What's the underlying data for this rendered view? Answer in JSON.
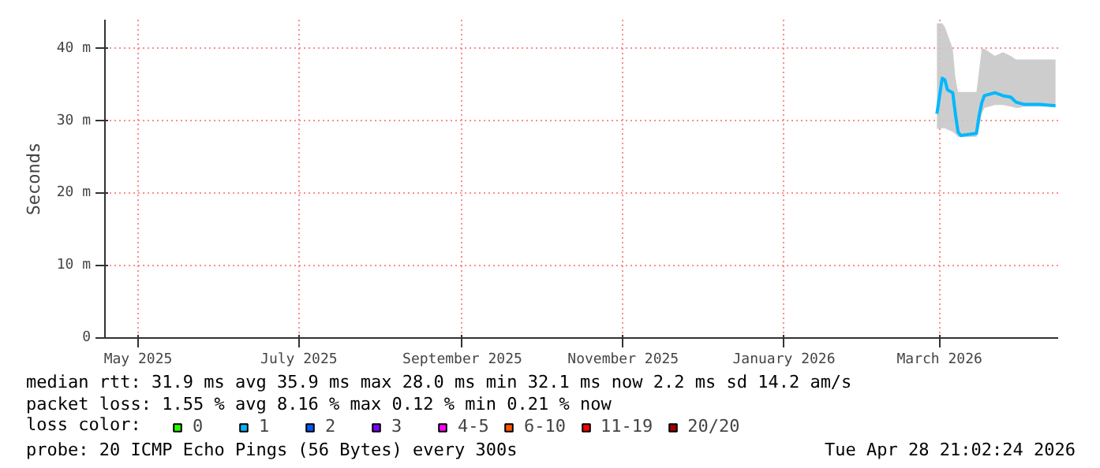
{
  "chart_data": {
    "type": "line",
    "ylabel": "Seconds",
    "legend_title": "loss color:",
    "x": [
      "2026-02-28",
      "2026-03-02",
      "2026-03-03",
      "2026-03-04",
      "2026-03-06",
      "2026-03-07",
      "2026-03-08",
      "2026-03-09",
      "2026-03-15",
      "2026-03-16",
      "2026-03-17",
      "2026-03-18",
      "2026-03-22",
      "2026-03-25",
      "2026-03-28",
      "2026-03-30",
      "2026-03-31",
      "2026-04-02",
      "2026-04-08",
      "2026-04-14"
    ],
    "series": [
      {
        "name": "0",
        "color": "#26ff00",
        "values": [
          null,
          null,
          null,
          null,
          null,
          null,
          null,
          null,
          null,
          null,
          null,
          null,
          null,
          null,
          null,
          null,
          null,
          null,
          null,
          null
        ]
      },
      {
        "name": "1",
        "color": "#00b8ff",
        "values": [
          31.0,
          35.9,
          35.7,
          34.3,
          33.9,
          31.0,
          28.5,
          28.0,
          28.3,
          30.7,
          32.5,
          33.5,
          33.9,
          33.5,
          33.3,
          32.6,
          32.5,
          32.3,
          32.3,
          32.1
        ],
        "lower": [
          28.9,
          29.0,
          29.0,
          28.8,
          28.5,
          28.2,
          27.8,
          27.8,
          27.8,
          29.0,
          31.0,
          31.8,
          32.2,
          32.2,
          32.0,
          31.8,
          31.8,
          32.0,
          32.0,
          32.0
        ],
        "upper": [
          43.5,
          43.5,
          43.0,
          42.0,
          40.0,
          36.0,
          34.0,
          34.0,
          34.0,
          37.0,
          40.0,
          40.0,
          39.0,
          39.5,
          39.0,
          38.5,
          38.5,
          38.5,
          38.5,
          38.5
        ]
      },
      {
        "name": "2",
        "color": "#0059ff",
        "values": [
          null,
          null,
          null,
          null,
          null,
          null,
          null,
          null,
          null,
          null,
          null,
          null,
          null,
          null,
          null,
          null,
          null,
          null,
          null,
          null
        ]
      },
      {
        "name": "3",
        "color": "#7e00ff",
        "values": [
          null,
          null,
          null,
          null,
          null,
          null,
          null,
          null,
          null,
          null,
          null,
          null,
          null,
          null,
          null,
          null,
          null,
          null,
          null,
          null
        ]
      },
      {
        "name": "4-5",
        "color": "#ff00ff",
        "values": [
          null,
          null,
          null,
          null,
          null,
          null,
          null,
          null,
          null,
          null,
          null,
          null,
          null,
          null,
          null,
          null,
          null,
          null,
          null,
          null
        ]
      },
      {
        "name": "6-10",
        "color": "#ff5500",
        "values": [
          null,
          null,
          null,
          null,
          null,
          null,
          null,
          null,
          null,
          null,
          null,
          null,
          null,
          null,
          null,
          null,
          null,
          null,
          null,
          null
        ]
      },
      {
        "name": "11-19",
        "color": "#ff0000",
        "values": [
          null,
          null,
          null,
          null,
          null,
          null,
          null,
          null,
          null,
          null,
          null,
          null,
          null,
          null,
          null,
          null,
          null,
          null,
          null,
          null
        ]
      },
      {
        "name": "20/20",
        "color": "#a10000",
        "values": [
          null,
          null,
          null,
          null,
          null,
          null,
          null,
          null,
          null,
          null,
          null,
          null,
          null,
          null,
          null,
          null,
          null,
          null,
          null,
          null
        ]
      }
    ],
    "xlim": [
      "2025-04-18T10:00",
      "2026-04-15"
    ],
    "xticks": [
      {
        "value": "2025-05-01",
        "label": "May 2025"
      },
      {
        "value": "2025-07-01",
        "label": "July 2025"
      },
      {
        "value": "2025-09-01",
        "label": "September 2025"
      },
      {
        "value": "2025-11-01",
        "label": "November 2025"
      },
      {
        "value": "2026-01-01",
        "label": "January 2026"
      },
      {
        "value": "2026-03-01",
        "label": "March 2026"
      }
    ],
    "ylim": [
      0,
      44
    ],
    "yticks": [
      0,
      {
        "value": 10,
        "label": "10 m"
      },
      {
        "value": 20,
        "label": "20 m"
      },
      {
        "value": 30,
        "label": "30 m"
      },
      {
        "value": 40,
        "label": "40 m"
      }
    ],
    "grid": true,
    "legend": "bottom",
    "annotations": [
      "median rtt:  31.9 ms avg  35.9 ms max  28.0 ms min  32.1 ms now  2.2 ms sd  14.2   am/s",
      "packet loss: 1.55 % avg  8.16 % max  0.12 % min  0.21 % now",
      "probe:       20 ICMP Echo Pings (56 Bytes) every 300s",
      "Tue Apr 28 21:02:24 2026"
    ]
  }
}
